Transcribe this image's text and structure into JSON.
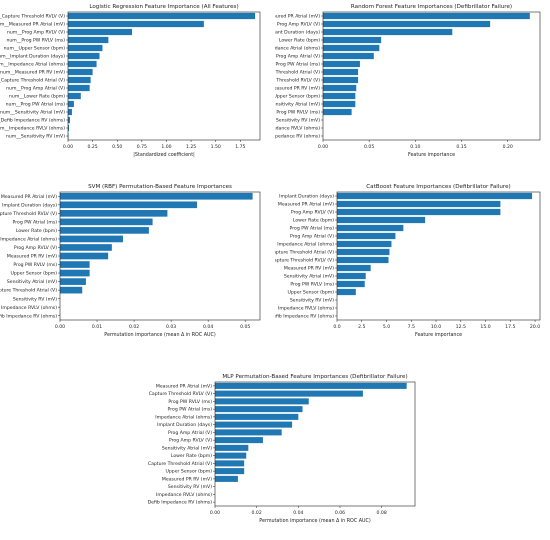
{
  "page": {
    "background": "#ffffff",
    "bar_color": "#1f77b4"
  },
  "chart_data": [
    {
      "type": "bar",
      "orientation": "horizontal",
      "title": "Logistic Regression Feature Importance (All Features)",
      "xlabel": "|Standardized coefficient|",
      "ylabel": "",
      "xlim": [
        0,
        1.95
      ],
      "xticks": [
        0.0,
        0.25,
        0.5,
        0.75,
        1.0,
        1.25,
        1.5,
        1.75
      ],
      "xtick_labels": [
        "0.00",
        "0.25",
        "0.50",
        "0.75",
        "1.00",
        "1.25",
        "1.50",
        "1.75"
      ],
      "grid": false,
      "categories": [
        "num__Capture Threshold RVLV (V)",
        "num__Measured PR Atrial (mV)",
        "num__Prog Amp RVLV (V)",
        "num__Prog PW RVLV (ms)",
        "num__Upper Sensor (bpm)",
        "num__Implant Duration (days)",
        "num__Impedance Atrial (ohms)",
        "num__Measured PR RV (mV)",
        "num__Capture Threshold Atrial (V)",
        "num__Prog Amp Atrial (V)",
        "num__Lower Rate (bpm)",
        "num__Prog PW Atrial (ms)",
        "num__Sensitivity Atrial (mV)",
        "num__Defib Impedance RV (ohms)",
        "num__Impedance RVLV (ohms)",
        "num__Sensitivity RV (mV)"
      ],
      "values": [
        1.9,
        1.38,
        0.65,
        0.41,
        0.35,
        0.32,
        0.29,
        0.25,
        0.23,
        0.22,
        0.13,
        0.06,
        0.04,
        0.02,
        0.01,
        0.005
      ]
    },
    {
      "type": "bar",
      "orientation": "horizontal",
      "title": "Random Forest Feature Importances (Defibrillator Failure)",
      "xlabel": "Feature importance",
      "ylabel": "",
      "xlim": [
        0,
        0.235
      ],
      "xticks": [
        0.0,
        0.05,
        0.1,
        0.15,
        0.2
      ],
      "xtick_labels": [
        "0.00",
        "0.05",
        "0.10",
        "0.15",
        "0.20"
      ],
      "grid": false,
      "categories": [
        "Measured PR Atrial (mV)",
        "Prog Amp RVLV (V)",
        "Implant Duration (days)",
        "Lower Rate (bpm)",
        "Impedance Atrial (ohms)",
        "Prog Amp Atrial (V)",
        "Prog PW Atrial (ms)",
        "Capture Threshold Atrial (V)",
        "Capture Threshold RVLV (V)",
        "Measured PR RV (mV)",
        "Upper Sensor (bpm)",
        "Sensitivity Atrial (mV)",
        "Prog PW RVLV (ms)",
        "Sensitivity RV (mV)",
        "Impedance RVLV (ohms)",
        "Defib Impedance RV (ohms)"
      ],
      "values": [
        0.224,
        0.181,
        0.14,
        0.063,
        0.061,
        0.055,
        0.04,
        0.038,
        0.038,
        0.036,
        0.035,
        0.035,
        0.031,
        0.0,
        0.0,
        0.0
      ]
    },
    {
      "type": "bar",
      "orientation": "horizontal",
      "title": "SVM (RBF) Permutation-Based Feature Importances",
      "xlabel": "Permutation importance (mean Δ in ROC AUC)",
      "ylabel": "",
      "xlim": [
        0,
        0.054
      ],
      "xticks": [
        0.0,
        0.01,
        0.02,
        0.03,
        0.04,
        0.05
      ],
      "xtick_labels": [
        "0.00",
        "0.01",
        "0.02",
        "0.03",
        "0.04",
        "0.05"
      ],
      "grid": false,
      "categories": [
        "Measured PR Atrial (mV)",
        "Implant Duration (days)",
        "Capture Threshold RVLV (V)",
        "Prog PW Atrial (ms)",
        "Lower Rate (bpm)",
        "Impedance Atrial (ohms)",
        "Prog Amp RVLV (V)",
        "Measured PR RV (mV)",
        "Prog PW RVLV (ms)",
        "Upper Sensor (bpm)",
        "Sensitivity Atrial (mV)",
        "Capture Threshold Atrial (V)",
        "Sensitivity RV (mV)",
        "Impedance RVLV (ohms)",
        "Defib Impedance RV (ohms)"
      ],
      "values": [
        0.052,
        0.037,
        0.029,
        0.025,
        0.024,
        0.017,
        0.014,
        0.013,
        0.008,
        0.008,
        0.007,
        0.006,
        0.0,
        0.0,
        0.0
      ]
    },
    {
      "type": "bar",
      "orientation": "horizontal",
      "title": "CatBoost Feature Importances (Defibrillator Failure)",
      "xlabel": "Feature importance",
      "ylabel": "",
      "xlim": [
        0,
        20.5
      ],
      "xticks": [
        0.0,
        2.5,
        5.0,
        7.5,
        10.0,
        12.5,
        15.0,
        17.5,
        20.0
      ],
      "xtick_labels": [
        "0.0",
        "2.5",
        "5.0",
        "7.5",
        "10.0",
        "12.5",
        "15.0",
        "17.5",
        "20.0"
      ],
      "grid": false,
      "categories": [
        "Implant Duration (days)",
        "Measured PR Atrial (mV)",
        "Prog Amp RVLV (V)",
        "Lower Rate (bpm)",
        "Prog PW Atrial (ms)",
        "Prog Amp Atrial (V)",
        "Impedance Atrial (ohms)",
        "Capture Threshold Atrial (V)",
        "Capture Threshold RVLV (V)",
        "Measured PR RV (mV)",
        "Sensitivity Atrial (mV)",
        "Prog PW RVLV (ms)",
        "Upper Sensor (bpm)",
        "Sensitivity RV (mV)",
        "Impedance RVLV (ohms)",
        "Defib Impedance RV (ohms)"
      ],
      "values": [
        19.7,
        16.5,
        16.5,
        8.9,
        6.7,
        5.9,
        5.5,
        5.3,
        5.2,
        3.4,
        2.9,
        2.8,
        1.9,
        0.0,
        0.0,
        0.0
      ]
    },
    {
      "type": "bar",
      "orientation": "horizontal",
      "title": "MLP Permutation-Based Feature Importances (Defibrillator Failure)",
      "xlabel": "Permutation importance (mean Δ in ROC AUC)",
      "ylabel": "",
      "xlim": [
        0,
        0.096
      ],
      "xticks": [
        0.0,
        0.02,
        0.04,
        0.06,
        0.08
      ],
      "xtick_labels": [
        "0.00",
        "0.02",
        "0.04",
        "0.06",
        "0.08"
      ],
      "grid": false,
      "categories": [
        "Measured PR Atrial (mV)",
        "Capture Threshold RVLV (V)",
        "Prog PW RVLV (ms)",
        "Prog PW Atrial (ms)",
        "Impedance Atrial (ohms)",
        "Implant Duration (days)",
        "Prog Amp Atrial (V)",
        "Prog Amp RVLV (V)",
        "Sensitivity Atrial (mV)",
        "Lower Rate (bpm)",
        "Capture Threshold Atrial (V)",
        "Upper Sensor (bpm)",
        "Measured PR RV (mV)",
        "Sensitivity RV (mV)",
        "Impedance RVLV (ohms)",
        "Defib Impedance RV (ohms)"
      ],
      "values": [
        0.092,
        0.071,
        0.045,
        0.042,
        0.04,
        0.037,
        0.032,
        0.023,
        0.016,
        0.015,
        0.014,
        0.014,
        0.011,
        0.0,
        0.0,
        0.0
      ]
    }
  ]
}
